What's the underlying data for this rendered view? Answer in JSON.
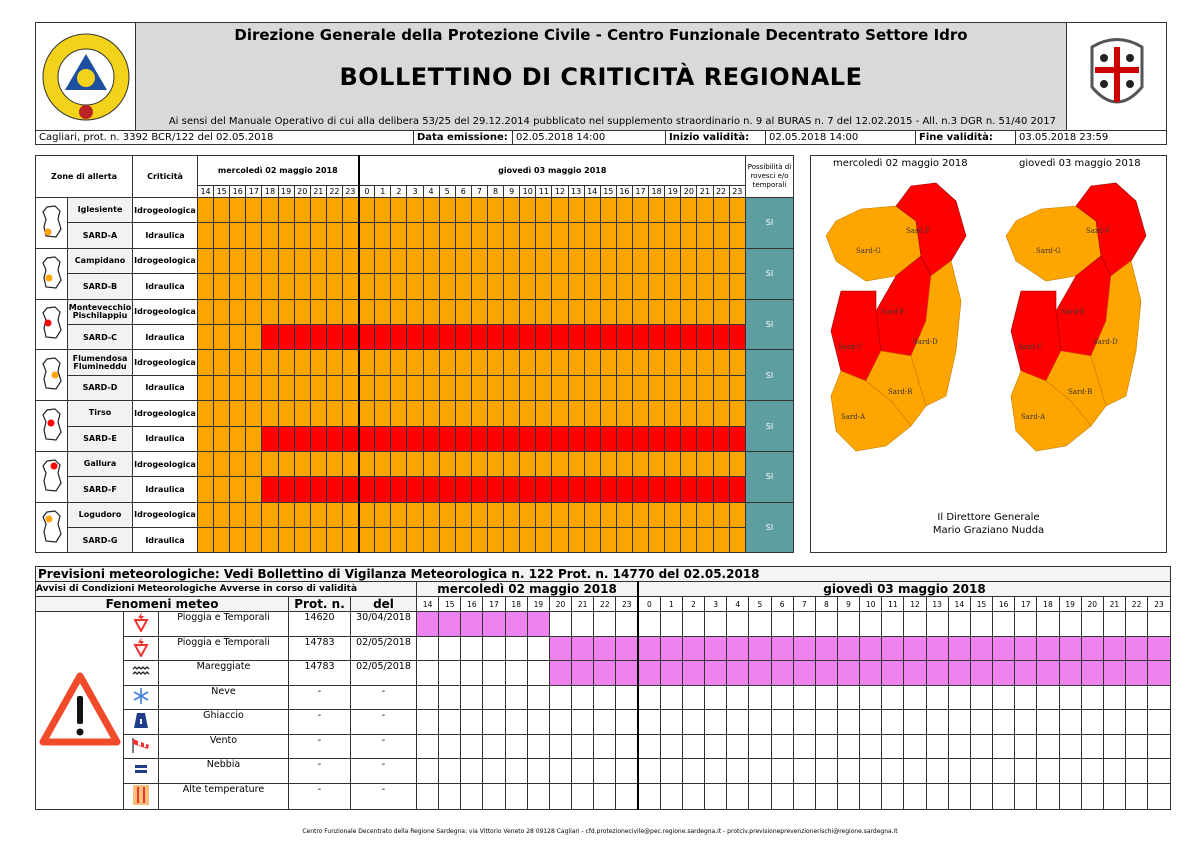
{
  "header": {
    "line1": "Direzione Generale della Protezione Civile - Centro Funzionale Decentrato Settore Idro",
    "title": "BOLLETTINO DI CRITICITÀ REGIONALE",
    "subtitle": "Ai sensi del Manuale Operativo di cui alla delibera 53/25 del 29.12.2014 pubblicato nel supplemento straordinario n. 9 al BURAS n. 7 del 12.02.2015 - All. n.3 DGR n. 51/40 2017",
    "logo_left_text": "REGIONE SARDEGNA PROTEZIONE CIVILE",
    "logo_right": "coat-of-arms-sardinia"
  },
  "info": {
    "protocol": "Cagliari, prot. n. 3392 BCR/122 del 02.05.2018",
    "emission_label": "Data emissione:",
    "emission_value": "02.05.2018 14:00",
    "start_label": "Inizio validità:",
    "start_value": "02.05.2018 14:00",
    "end_label": "Fine validità:",
    "end_value": "03.05.2018 23:59"
  },
  "criticality": {
    "col_zones": "Zone di allerta",
    "col_crit": "Criticità",
    "days": [
      {
        "label": "mercoledì 02 maggio 2018",
        "hours": [
          "14",
          "15",
          "16",
          "17",
          "18",
          "19",
          "20",
          "21",
          "22",
          "23"
        ]
      },
      {
        "label": "giovedì 03 maggio 2018",
        "hours": [
          "0",
          "1",
          "2",
          "3",
          "4",
          "5",
          "6",
          "7",
          "8",
          "9",
          "10",
          "11",
          "12",
          "13",
          "14",
          "15",
          "16",
          "17",
          "18",
          "19",
          "20",
          "21",
          "22",
          "23"
        ]
      }
    ],
    "col_poss": "Possibilità di rovesci e/o temporali",
    "colors": {
      "orange": "#ffa500",
      "red": "#ff0000",
      "teal": "#5f9ea0"
    },
    "zones": [
      {
        "name": "Iglesiente",
        "code": "SARD-A",
        "poss": "SI",
        "rows": [
          {
            "type": "Idrogeologica",
            "red_from": null
          },
          {
            "type": "Idraulica",
            "red_from": null
          }
        ]
      },
      {
        "name": "Campidano",
        "code": "SARD-B",
        "poss": "SI",
        "rows": [
          {
            "type": "Idrogeologica",
            "red_from": null
          },
          {
            "type": "Idraulica",
            "red_from": null
          }
        ]
      },
      {
        "name": "Montevecchio Pischilappiu",
        "code": "SARD-C",
        "poss": "SI",
        "rows": [
          {
            "type": "Idrogeologica",
            "red_from": null
          },
          {
            "type": "Idraulica",
            "red_from": "02 18"
          }
        ]
      },
      {
        "name": "Flumendosa Flumineddu",
        "code": "SARD-D",
        "poss": "SI",
        "rows": [
          {
            "type": "Idrogeologica",
            "red_from": null
          },
          {
            "type": "Idraulica",
            "red_from": null
          }
        ]
      },
      {
        "name": "Tirso",
        "code": "SARD-E",
        "poss": "SI",
        "rows": [
          {
            "type": "Idrogeologica",
            "red_from": null
          },
          {
            "type": "Idraulica",
            "red_from": "02 18"
          }
        ]
      },
      {
        "name": "Gallura",
        "code": "SARD-F",
        "poss": "SI",
        "rows": [
          {
            "type": "Idrogeologica",
            "red_from": null
          },
          {
            "type": "Idraulica",
            "red_from": "02 18"
          }
        ]
      },
      {
        "name": "Logudoro",
        "code": "SARD-G",
        "poss": "SI",
        "rows": [
          {
            "type": "Idrogeologica",
            "red_from": null
          },
          {
            "type": "Idraulica",
            "red_from": null
          }
        ]
      }
    ]
  },
  "maps": {
    "day1": "mercoledì 02 maggio 2018",
    "day2": "giovedì 03 maggio 2018",
    "zone_labels": [
      "Sard-A",
      "Sard-B",
      "Sard-C",
      "Sard-D",
      "Sard-E",
      "Sard-F",
      "Sard-G"
    ],
    "signature_title": "Il Direttore Generale",
    "signature_name": "Mario Graziano Nudda"
  },
  "meteo": {
    "title": "Previsioni meteorologiche: Vedi Bollettino di Vigilanza Meteorologica n. 122 Prot. n. 14770 del 02.05.2018",
    "subtitle": "Avvisi di Condizioni Meteorologiche Avverse in corso di validità",
    "col_phen": "Fenomeni meteo",
    "col_prot": "Prot. n.",
    "col_del": "del",
    "pink": "#ee82ee",
    "items": [
      {
        "name": "Pioggia e Temporali",
        "prot": "14620",
        "del": "30/04/2018",
        "icon": "rain-storm-icon",
        "active": [
          "02 14",
          "02 19"
        ]
      },
      {
        "name": "Pioggia e Temporali",
        "prot": "14783",
        "del": "02/05/2018",
        "icon": "rain-storm-icon",
        "active": [
          "02 20",
          "03 23"
        ]
      },
      {
        "name": "Mareggiate",
        "prot": "14783",
        "del": "02/05/2018",
        "icon": "waves-icon",
        "active": [
          "02 20",
          "03 23"
        ]
      },
      {
        "name": "Neve",
        "prot": "-",
        "del": "-",
        "icon": "snowflake-icon",
        "active": null
      },
      {
        "name": "Ghiaccio",
        "prot": "-",
        "del": "-",
        "icon": "ice-icon",
        "active": null
      },
      {
        "name": "Vento",
        "prot": "-",
        "del": "-",
        "icon": "windsock-icon",
        "active": null
      },
      {
        "name": "Nebbia",
        "prot": "-",
        "del": "-",
        "icon": "fog-icon",
        "active": null
      },
      {
        "name": "Alte temperature",
        "prot": "-",
        "del": "-",
        "icon": "thermometer-icon",
        "active": null
      }
    ]
  },
  "footer": "Centro Funzionale Decentrato della Regione Sardegna: via Vittorio Veneto 28 09128 Cagliari - cfd.protezionecivile@pec.regione.sardegna.it - protciv.previsioneprevenzionerischi@regione.sardegna.it"
}
